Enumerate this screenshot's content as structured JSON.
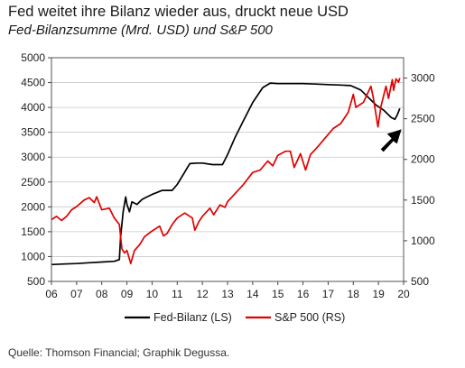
{
  "header": {
    "title": "Fed weitet ihre Bilanz wieder aus, druckt neue USD",
    "subtitle": "Fed-Bilanzsumme (Mrd. USD) und S&P 500"
  },
  "footer": {
    "source": "Quelle: Thomson Financial; Graphik Degussa."
  },
  "colors": {
    "fed": "#000000",
    "sp": "#e00000",
    "arrow": "#000000",
    "grid": "#c8c8c8"
  },
  "chart_data": {
    "type": "line",
    "title": "Fed-Bilanzsumme (Mrd. USD) und S&P 500",
    "x_tick_labels": [
      "06",
      "07",
      "08",
      "09",
      "10",
      "11",
      "12",
      "13",
      "14",
      "15",
      "16",
      "17",
      "18",
      "19",
      "20"
    ],
    "xlim": [
      2006,
      2020
    ],
    "y_left": {
      "lim": [
        500,
        5000
      ],
      "ticks": [
        500,
        1000,
        1500,
        2000,
        2500,
        3000,
        3500,
        4000,
        4500,
        5000
      ]
    },
    "y_right": {
      "lim": [
        500,
        3250
      ],
      "ticks": [
        500,
        1000,
        1500,
        2000,
        2500,
        3000
      ]
    },
    "grid": "horizontal",
    "legend_position": "bottom",
    "annotation": "arrow pointing at the recent upturn of the Fed balance sheet",
    "series": [
      {
        "name": "Fed-Bilanz (LS)",
        "axis": "left",
        "points": [
          [
            2006.0,
            840
          ],
          [
            2006.5,
            850
          ],
          [
            2007.0,
            860
          ],
          [
            2007.5,
            875
          ],
          [
            2008.0,
            890
          ],
          [
            2008.5,
            905
          ],
          [
            2008.7,
            940
          ],
          [
            2008.75,
            1400
          ],
          [
            2008.85,
            1900
          ],
          [
            2008.95,
            2200
          ],
          [
            2009.0,
            2050
          ],
          [
            2009.1,
            1900
          ],
          [
            2009.2,
            2100
          ],
          [
            2009.4,
            2050
          ],
          [
            2009.6,
            2150
          ],
          [
            2009.8,
            2200
          ],
          [
            2010.0,
            2250
          ],
          [
            2010.4,
            2330
          ],
          [
            2010.8,
            2330
          ],
          [
            2011.0,
            2450
          ],
          [
            2011.3,
            2700
          ],
          [
            2011.5,
            2870
          ],
          [
            2011.8,
            2880
          ],
          [
            2012.0,
            2880
          ],
          [
            2012.4,
            2850
          ],
          [
            2012.8,
            2850
          ],
          [
            2013.0,
            3050
          ],
          [
            2013.3,
            3400
          ],
          [
            2013.6,
            3700
          ],
          [
            2014.0,
            4100
          ],
          [
            2014.4,
            4400
          ],
          [
            2014.7,
            4490
          ],
          [
            2015.0,
            4480
          ],
          [
            2015.5,
            4480
          ],
          [
            2016.0,
            4480
          ],
          [
            2016.5,
            4470
          ],
          [
            2017.0,
            4460
          ],
          [
            2017.5,
            4450
          ],
          [
            2017.9,
            4440
          ],
          [
            2018.3,
            4350
          ],
          [
            2018.6,
            4200
          ],
          [
            2018.9,
            4050
          ],
          [
            2019.2,
            3950
          ],
          [
            2019.5,
            3800
          ],
          [
            2019.65,
            3760
          ],
          [
            2019.75,
            3850
          ],
          [
            2019.85,
            3980
          ]
        ]
      },
      {
        "name": "S&P 500 (RS)",
        "axis": "right",
        "points": [
          [
            2006.0,
            1260
          ],
          [
            2006.2,
            1300
          ],
          [
            2006.4,
            1250
          ],
          [
            2006.6,
            1300
          ],
          [
            2006.8,
            1380
          ],
          [
            2007.0,
            1420
          ],
          [
            2007.3,
            1500
          ],
          [
            2007.5,
            1530
          ],
          [
            2007.7,
            1470
          ],
          [
            2007.8,
            1540
          ],
          [
            2008.0,
            1380
          ],
          [
            2008.3,
            1400
          ],
          [
            2008.5,
            1280
          ],
          [
            2008.7,
            1200
          ],
          [
            2008.8,
            900
          ],
          [
            2008.9,
            850
          ],
          [
            2009.0,
            880
          ],
          [
            2009.15,
            720
          ],
          [
            2009.3,
            880
          ],
          [
            2009.5,
            950
          ],
          [
            2009.7,
            1050
          ],
          [
            2010.0,
            1120
          ],
          [
            2010.3,
            1180
          ],
          [
            2010.45,
            1060
          ],
          [
            2010.6,
            1090
          ],
          [
            2010.8,
            1200
          ],
          [
            2011.0,
            1280
          ],
          [
            2011.3,
            1340
          ],
          [
            2011.6,
            1280
          ],
          [
            2011.7,
            1130
          ],
          [
            2011.85,
            1230
          ],
          [
            2012.0,
            1300
          ],
          [
            2012.3,
            1400
          ],
          [
            2012.45,
            1320
          ],
          [
            2012.7,
            1440
          ],
          [
            2012.9,
            1410
          ],
          [
            2013.0,
            1480
          ],
          [
            2013.3,
            1580
          ],
          [
            2013.6,
            1680
          ],
          [
            2013.9,
            1800
          ],
          [
            2014.0,
            1840
          ],
          [
            2014.3,
            1870
          ],
          [
            2014.6,
            1980
          ],
          [
            2014.8,
            1920
          ],
          [
            2015.0,
            2050
          ],
          [
            2015.3,
            2100
          ],
          [
            2015.5,
            2100
          ],
          [
            2015.65,
            1900
          ],
          [
            2015.9,
            2070
          ],
          [
            2016.1,
            1870
          ],
          [
            2016.3,
            2060
          ],
          [
            2016.6,
            2160
          ],
          [
            2016.9,
            2270
          ],
          [
            2017.2,
            2380
          ],
          [
            2017.5,
            2440
          ],
          [
            2017.8,
            2580
          ],
          [
            2018.0,
            2800
          ],
          [
            2018.1,
            2640
          ],
          [
            2018.4,
            2700
          ],
          [
            2018.7,
            2900
          ],
          [
            2018.8,
            2750
          ],
          [
            2018.98,
            2400
          ],
          [
            2019.1,
            2650
          ],
          [
            2019.3,
            2900
          ],
          [
            2019.4,
            2750
          ],
          [
            2019.55,
            2980
          ],
          [
            2019.6,
            2850
          ],
          [
            2019.7,
            2990
          ],
          [
            2019.8,
            2950
          ],
          [
            2019.85,
            3000
          ]
        ]
      }
    ]
  }
}
